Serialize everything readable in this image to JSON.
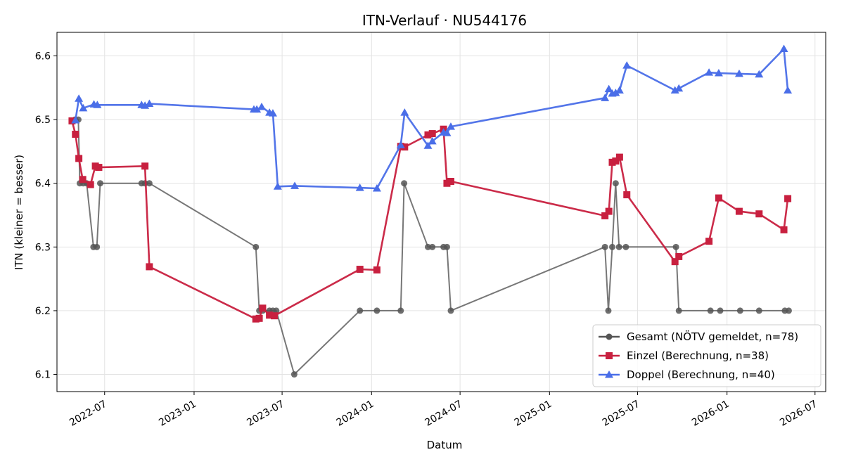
{
  "chart_data": {
    "type": "line",
    "title": "ITN-Verlauf · NU544176",
    "xlabel": "Datum",
    "ylabel": "ITN  (kleiner = besser)",
    "x_ticks": [
      "2022-07",
      "2023-01",
      "2023-07",
      "2024-01",
      "2024-07",
      "2025-01",
      "2025-07",
      "2026-01",
      "2026-07"
    ],
    "y_ticks": [
      "6.1",
      "6.2",
      "6.3",
      "6.4",
      "6.5",
      "6.6"
    ],
    "ylim": [
      6.073,
      6.637
    ],
    "xlim": [
      "2022-03-25",
      "2026-07-23"
    ],
    "grid": true,
    "legend_position": "bottom-right",
    "series": [
      {
        "name": "Gesamt (NÖTV gemeldet, n=78)",
        "color": "#555555",
        "marker": "circle",
        "x": [
          "2022-05-01",
          "2022-05-08",
          "2022-05-11",
          "2022-05-18",
          "2022-05-25",
          "2022-06-08",
          "2022-06-15",
          "2022-06-22",
          "2022-09-15",
          "2022-09-22",
          "2022-10-01",
          "2023-05-08",
          "2023-05-15",
          "2023-05-22",
          "2023-06-05",
          "2023-06-12",
          "2023-06-19",
          "2023-07-26",
          "2023-12-08",
          "2024-01-12",
          "2024-03-01",
          "2024-03-08",
          "2024-04-26",
          "2024-05-05",
          "2024-05-28",
          "2024-06-04",
          "2024-06-12",
          "2025-04-25",
          "2025-05-02",
          "2025-05-10",
          "2025-05-17",
          "2025-05-24",
          "2025-06-07",
          "2025-09-18",
          "2025-09-24",
          "2025-11-28",
          "2025-12-18",
          "2026-01-28",
          "2026-03-08",
          "2026-04-30",
          "2026-05-08"
        ],
        "y": [
          6.5,
          6.5,
          6.4,
          6.4,
          6.4,
          6.3,
          6.3,
          6.4,
          6.4,
          6.4,
          6.4,
          6.3,
          6.2,
          6.2,
          6.2,
          6.2,
          6.2,
          6.1,
          6.2,
          6.2,
          6.2,
          6.4,
          6.3,
          6.3,
          6.3,
          6.3,
          6.2,
          6.3,
          6.2,
          6.3,
          6.4,
          6.3,
          6.3,
          6.3,
          6.2,
          6.2,
          6.2,
          6.2,
          6.2,
          6.2,
          6.2
        ]
      },
      {
        "name": "Einzel (Berechnung, n=38)",
        "color": "#c8203f",
        "marker": "square",
        "x": [
          "2022-04-25",
          "2022-05-02",
          "2022-05-09",
          "2022-05-17",
          "2022-06-02",
          "2022-06-12",
          "2022-06-19",
          "2022-09-22",
          "2022-10-01",
          "2023-05-08",
          "2023-05-15",
          "2023-05-22",
          "2023-06-05",
          "2023-06-15",
          "2023-12-08",
          "2024-01-12",
          "2024-03-01",
          "2024-03-09",
          "2024-04-26",
          "2024-05-05",
          "2024-05-28",
          "2024-06-04",
          "2024-06-12",
          "2025-04-25",
          "2025-05-03",
          "2025-05-10",
          "2025-05-17",
          "2025-05-25",
          "2025-06-09",
          "2025-09-16",
          "2025-09-24",
          "2025-11-25",
          "2025-12-15",
          "2026-01-26",
          "2026-03-08",
          "2026-04-28",
          "2026-05-06"
        ],
        "y": [
          6.498,
          6.477,
          6.439,
          6.406,
          6.398,
          6.427,
          6.425,
          6.427,
          6.269,
          6.187,
          6.188,
          6.204,
          6.193,
          6.192,
          6.265,
          6.264,
          6.458,
          6.457,
          6.476,
          6.478,
          6.485,
          6.4,
          6.403,
          6.349,
          6.356,
          6.433,
          6.435,
          6.441,
          6.382,
          6.277,
          6.285,
          6.309,
          6.377,
          6.356,
          6.352,
          6.327,
          6.376
        ]
      },
      {
        "name": "Doppel (Berechnung, n=40)",
        "color": "#4a6ee8",
        "marker": "triangle",
        "x": [
          "2022-05-02",
          "2022-05-09",
          "2022-05-18",
          "2022-06-09",
          "2022-06-16",
          "2022-09-15",
          "2022-09-22",
          "2022-10-01",
          "2023-05-04",
          "2023-05-10",
          "2023-05-20",
          "2023-06-05",
          "2023-06-12",
          "2023-06-22",
          "2023-07-27",
          "2023-12-08",
          "2024-01-12",
          "2024-03-01",
          "2024-03-09",
          "2024-04-26",
          "2024-05-05",
          "2024-05-28",
          "2024-06-04",
          "2024-06-12",
          "2025-04-25",
          "2025-05-03",
          "2025-05-10",
          "2025-05-17",
          "2025-05-25",
          "2025-06-09",
          "2025-09-16",
          "2025-09-24",
          "2025-11-25",
          "2025-12-15",
          "2026-01-26",
          "2026-03-08",
          "2026-04-28",
          "2026-05-06"
        ],
        "y": [
          6.499,
          6.533,
          6.518,
          6.524,
          6.523,
          6.523,
          6.522,
          6.525,
          6.516,
          6.516,
          6.52,
          6.511,
          6.51,
          6.395,
          6.396,
          6.393,
          6.392,
          6.46,
          6.511,
          6.459,
          6.466,
          6.48,
          6.479,
          6.489,
          6.534,
          6.548,
          6.541,
          6.542,
          6.546,
          6.585,
          6.546,
          6.549,
          6.574,
          6.573,
          6.572,
          6.571,
          6.611,
          6.546
        ]
      }
    ]
  }
}
